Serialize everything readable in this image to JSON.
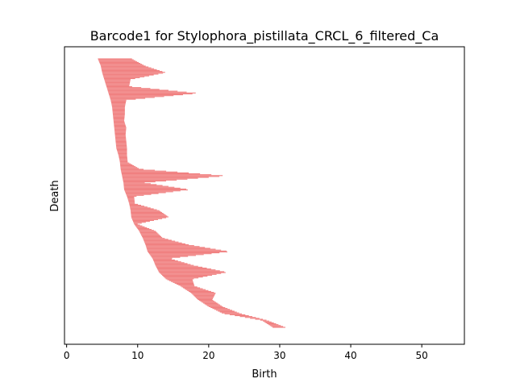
{
  "chart_data": {
    "type": "barcode",
    "title": "Barcode1 for Stylophora_pistillata_CRCL_6_filtered_Ca",
    "xlabel": "Birth",
    "ylabel": "Death",
    "xlim": [
      -0.3,
      56
    ],
    "x_ticks": [
      0,
      10,
      20,
      30,
      40,
      50
    ],
    "y_ticks_visible": false,
    "grid": false,
    "bar_color": "#f08080",
    "bar_count": 300,
    "bars": [
      {
        "birth": 4.4,
        "end": 9.2
      },
      {
        "birth": 4.8,
        "end": 11.0
      },
      {
        "birth": 5.0,
        "end": 14.0
      },
      {
        "birth": 5.3,
        "end": 9.0
      },
      {
        "birth": 5.6,
        "end": 8.8
      },
      {
        "birth": 5.9,
        "end": 18.6
      },
      {
        "birth": 6.2,
        "end": 8.4
      },
      {
        "birth": 6.4,
        "end": 8.2
      },
      {
        "birth": 6.5,
        "end": 8.2
      },
      {
        "birth": 6.6,
        "end": 8.1
      },
      {
        "birth": 6.7,
        "end": 8.4
      },
      {
        "birth": 6.8,
        "end": 8.3
      },
      {
        "birth": 6.9,
        "end": 8.4
      },
      {
        "birth": 7.0,
        "end": 8.5
      },
      {
        "birth": 7.3,
        "end": 8.5
      },
      {
        "birth": 7.5,
        "end": 8.6
      },
      {
        "birth": 7.6,
        "end": 10.3
      },
      {
        "birth": 7.8,
        "end": 22.5
      },
      {
        "birth": 8.0,
        "end": 11.0
      },
      {
        "birth": 8.1,
        "end": 17.4
      },
      {
        "birth": 8.5,
        "end": 9.5
      },
      {
        "birth": 8.8,
        "end": 9.6
      },
      {
        "birth": 9.0,
        "end": 13.0
      },
      {
        "birth": 9.1,
        "end": 14.4
      },
      {
        "birth": 9.5,
        "end": 10.0
      },
      {
        "birth": 10.2,
        "end": 12.5
      },
      {
        "birth": 10.7,
        "end": 13.5
      },
      {
        "birth": 11.1,
        "end": 17.2
      },
      {
        "birth": 11.4,
        "end": 23.0
      },
      {
        "birth": 12.1,
        "end": 14.5
      },
      {
        "birth": 12.5,
        "end": 17.9
      },
      {
        "birth": 13.0,
        "end": 22.6
      },
      {
        "birth": 14.0,
        "end": 17.7
      },
      {
        "birth": 16.0,
        "end": 18.0
      },
      {
        "birth": 17.5,
        "end": 21.0
      },
      {
        "birth": 18.5,
        "end": 20.5
      },
      {
        "birth": 20.0,
        "end": 22.0
      },
      {
        "birth": 22.0,
        "end": 24.5
      },
      {
        "birth": 27.5,
        "end": 28.3
      },
      {
        "birth": 29.0,
        "end": 30.8
      }
    ]
  }
}
